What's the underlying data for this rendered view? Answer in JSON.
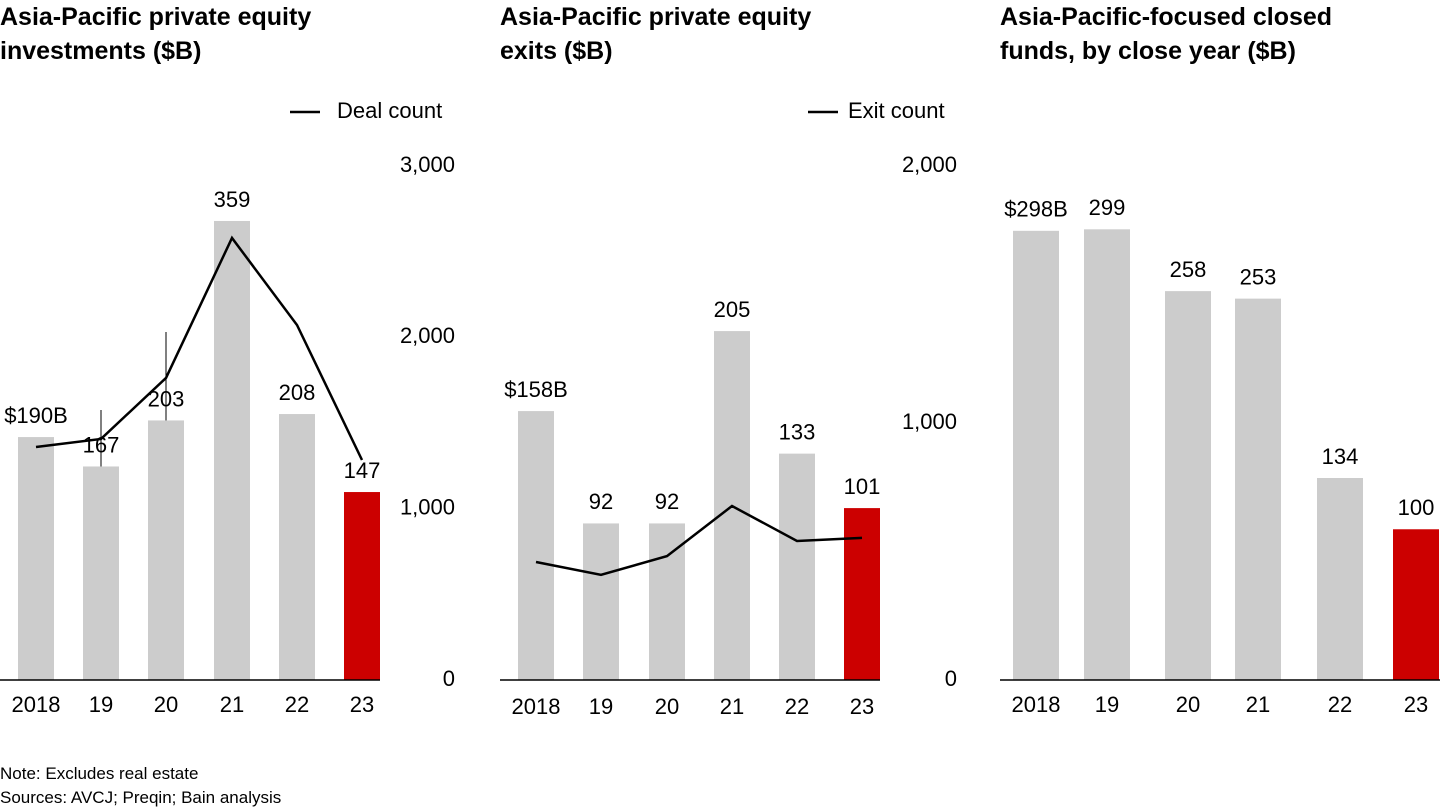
{
  "chart_data": [
    {
      "type": "bar",
      "title": [
        "Asia-Pacific private equity",
        "investments ($B)"
      ],
      "categories": [
        "2018",
        "19",
        "20",
        "21",
        "22",
        "23"
      ],
      "values": [
        190,
        167,
        203,
        359,
        208,
        147
      ],
      "value_labels": [
        "$190B",
        "167",
        "203",
        "359",
        "208",
        "147"
      ],
      "colors": [
        "#cccccc",
        "#cccccc",
        "#cccccc",
        "#cccccc",
        "#cccccc",
        "#cc0000"
      ],
      "ylim": [
        0,
        402
      ],
      "series": [
        {
          "name": "Deal count",
          "color": "#000000",
          "axis": "y2",
          "values": [
            1360,
            1407,
            1763,
            2580,
            2072,
            1284
          ]
        }
      ],
      "y2lim": [
        0,
        3000
      ],
      "y2ticks": [
        0,
        {
          "value": 1000,
          "label": "1,000"
        },
        {
          "value": 2000,
          "label": "2,000"
        },
        {
          "value": 3000,
          "label": "3,000"
        }
      ]
    },
    {
      "type": "bar",
      "title": [
        "Asia-Pacific private equity",
        "exits ($B)"
      ],
      "categories": [
        "2018",
        "19",
        "20",
        "21",
        "22",
        "23"
      ],
      "values": [
        158,
        92,
        92,
        205,
        133,
        101
      ],
      "value_labels": [
        "$158B",
        "92",
        "92",
        "205",
        "133",
        "101"
      ],
      "colors": [
        "#cccccc",
        "#cccccc",
        "#cccccc",
        "#cccccc",
        "#cccccc",
        "#cc0000"
      ],
      "ylim": [
        0,
        302
      ],
      "series": [
        {
          "name": "Exit count",
          "color": "#000000",
          "axis": "y2",
          "values": [
            459,
            409,
            482,
            677,
            541,
            553
          ]
        }
      ],
      "y2lim": [
        0,
        2000
      ],
      "y2ticks": [
        0,
        {
          "value": 1000,
          "label": "1,000"
        },
        {
          "value": 2000,
          "label": "2,000"
        }
      ]
    },
    {
      "type": "bar",
      "title": [
        "Asia-Pacific-focused closed",
        "funds, by close year ($B)"
      ],
      "categories": [
        "2018",
        "19",
        "20",
        "21",
        "22",
        "23"
      ],
      "values": [
        298,
        299,
        258,
        253,
        134,
        100
      ],
      "value_labels": [
        "$298B",
        "299",
        "258",
        "253",
        "134",
        "100"
      ],
      "colors": [
        "#cccccc",
        "#cccccc",
        "#cccccc",
        "#cccccc",
        "#cccccc",
        "#cc0000"
      ],
      "ylim": [
        0,
        341
      ]
    }
  ],
  "note": "Note: Excludes real estate",
  "sources": "Sources: AVCJ; Preqin; Bain analysis"
}
